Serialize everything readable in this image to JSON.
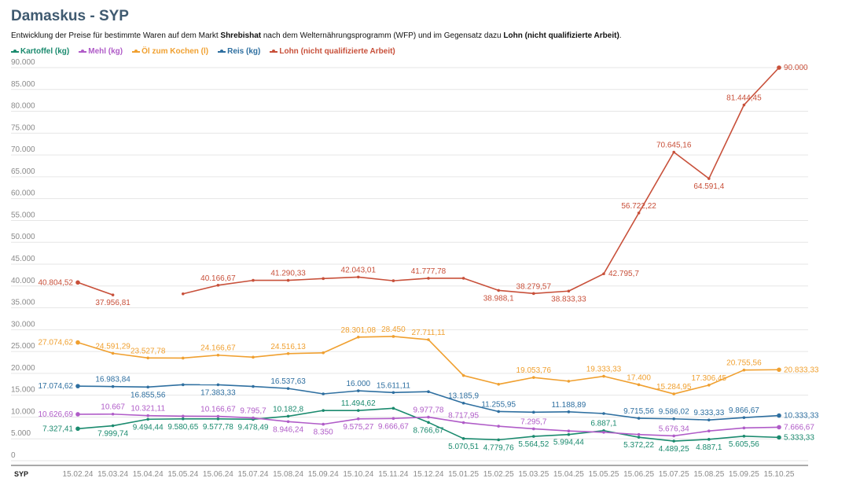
{
  "title": "Damaskus - SYP",
  "subtitle": {
    "part1": "Entwicklung der Preise für bestimmte Waren auf dem Markt ",
    "market": "Shrebishat",
    "part2": " nach dem Welternährungsprogramm (WFP) und im Gegensatz dazu ",
    "wage": "Lohn (nicht qualifizierte Arbeit)",
    "part3": "."
  },
  "chart_data": {
    "type": "line",
    "title": "Damaskus - SYP",
    "ylabel": "SYP",
    "ylim": [
      0,
      90000
    ],
    "yticks": [
      "0",
      "5.000",
      "10.000",
      "15.000",
      "20.000",
      "25.000",
      "30.000",
      "35.000",
      "40.000",
      "45.000",
      "50.000",
      "55.000",
      "60.000",
      "65.000",
      "70.000",
      "75.000",
      "80.000",
      "85.000",
      "90.000"
    ],
    "x": [
      "15.02.24",
      "15.03.24",
      "15.04.24",
      "15.05.24",
      "15.06.24",
      "15.07.24",
      "15.08.24",
      "15.09.24",
      "15.10.24",
      "15.11.24",
      "15.12.24",
      "15.01.25",
      "15.02.25",
      "15.03.25",
      "15.04.25",
      "15.05.25",
      "15.06.25",
      "15.07.25",
      "15.08.25",
      "15.09.25",
      "15.10.25"
    ],
    "grid": true,
    "legend_position": "top-left",
    "series": [
      {
        "name": "Kartoffel (kg)",
        "color": "#1a8a6e",
        "values": [
          7327.41,
          7999.74,
          9494.44,
          9580.65,
          9577.78,
          9478.49,
          10182.8,
          11494.62,
          11494.62,
          12000,
          8766.67,
          5070.51,
          4779.76,
          5564.52,
          5994.44,
          6887.1,
          5372.22,
          4489.25,
          4887.1,
          5605.56,
          5333.33
        ],
        "labels": [
          "7.327,41",
          "7.999,74",
          "9.494,44",
          "9.580,65",
          "9.577,78",
          "9.478,49",
          "10.182,8",
          "",
          "11.494,62",
          "",
          "8.766,67",
          "5.070,51",
          "4.779,76",
          "5.564,52",
          "5.994,44",
          "6.887,1",
          "5.372,22",
          "4.489,25",
          "4.887,1",
          "5.605,56",
          "5.333,33"
        ],
        "label_pos": [
          "left",
          "below",
          "below",
          "below",
          "below",
          "below",
          "above",
          "",
          "above",
          "",
          "below",
          "below",
          "below",
          "below",
          "below",
          "above",
          "below",
          "below",
          "below",
          "below",
          "right"
        ]
      },
      {
        "name": "Mehl (kg)",
        "color": "#b05cc8",
        "values": [
          10626.69,
          10667,
          10321.11,
          10200,
          10166.67,
          9795.7,
          8946.24,
          8350,
          9575.27,
          9666.67,
          9977.78,
          8717.95,
          7900,
          7295.7,
          6800,
          6500,
          6000,
          5676.34,
          6800,
          7500,
          7666.67
        ],
        "labels": [
          "10.626,69",
          "10.667",
          "10.321,11",
          "",
          "10.166,67",
          "9.795,7",
          "8.946,24",
          "8.350",
          "9.575,27",
          "9.666,67",
          "9.977,78",
          "8.717,95",
          "",
          "7.295,7",
          "",
          "",
          "",
          "5.676,34",
          "",
          "",
          "7.666,67"
        ],
        "label_pos": [
          "left",
          "above",
          "above",
          "",
          "above",
          "above",
          "below",
          "below",
          "below",
          "below",
          "above",
          "above",
          "",
          "above",
          "",
          "",
          "",
          "above",
          "",
          "",
          "right"
        ]
      },
      {
        "name": "Öl zum Kochen (l)",
        "color": "#f0a030",
        "values": [
          27074.62,
          24591.29,
          23527.78,
          23500,
          24166.67,
          23700,
          24516.13,
          24700,
          28301.08,
          28450,
          27711.11,
          19500,
          17500,
          19053.76,
          18200,
          19333.33,
          17400,
          15284.95,
          17306.45,
          20755.56,
          20833.33
        ],
        "labels": [
          "27.074,62",
          "24.591,29",
          "23.527,78",
          "",
          "24.166,67",
          "",
          "24.516,13",
          "",
          "28.301,08",
          "28.450",
          "27.711,11",
          "",
          "",
          "19.053,76",
          "",
          "19.333,33",
          "17.400",
          "15.284,95",
          "17.306,45",
          "20.755,56",
          "20.833,33"
        ],
        "label_pos": [
          "left",
          "above",
          "above",
          "",
          "above",
          "",
          "above",
          "",
          "above",
          "above",
          "above",
          "",
          "",
          "above",
          "",
          "above",
          "above",
          "above",
          "above",
          "above",
          "right"
        ]
      },
      {
        "name": "Reis (kg)",
        "color": "#2e6fa0",
        "values": [
          17074.62,
          16983.84,
          16855.56,
          17400,
          17383.33,
          17000,
          16537.63,
          15300,
          16000,
          15611.11,
          15800,
          13185.9,
          11255.95,
          11100,
          11188.89,
          10800,
          9715.56,
          9586.02,
          9333.33,
          9866.67,
          10333.33
        ],
        "labels": [
          "17.074,62",
          "16.983,84",
          "16.855,56",
          "",
          "17.383,33",
          "",
          "16.537,63",
          "",
          "16.000",
          "15.611,11",
          "",
          "13.185,9",
          "11.255,95",
          "",
          "11.188,89",
          "",
          "9.715,56",
          "9.586,02",
          "9.333,33",
          "9.866,67",
          "10.333,33"
        ],
        "label_pos": [
          "left",
          "above",
          "below",
          "",
          "below",
          "",
          "above",
          "",
          "above",
          "above",
          "",
          "above",
          "above",
          "",
          "above",
          "",
          "above",
          "above",
          "above",
          "above",
          "right"
        ]
      },
      {
        "name": "Lohn (nicht qualifizierte Arbeit)",
        "color": "#c8503a",
        "values": [
          40804.52,
          37956.81,
          null,
          38200,
          40166.67,
          41290.33,
          41290.33,
          41700,
          42043.01,
          41200,
          41777.78,
          41777.78,
          38988.1,
          38279.57,
          38833.33,
          42795.7,
          56722.22,
          70645.16,
          64591.4,
          81444.45,
          90000
        ],
        "labels": [
          "40.804,52",
          "37.956,81",
          "",
          "",
          "40.166,67",
          "",
          "41.290,33",
          "",
          "42.043,01",
          "",
          "41.777,78",
          "",
          "38.988,1",
          "38.279,57",
          "38.833,33",
          "42.795,7",
          "56.722,22",
          "70.645,16",
          "64.591,4",
          "81.444,45",
          "90.000"
        ],
        "label_pos": [
          "left",
          "below",
          "",
          "",
          "above",
          "",
          "above",
          "",
          "above",
          "",
          "above",
          "",
          "below",
          "above",
          "below",
          "right",
          "above",
          "above",
          "below",
          "above",
          "right"
        ]
      }
    ]
  }
}
